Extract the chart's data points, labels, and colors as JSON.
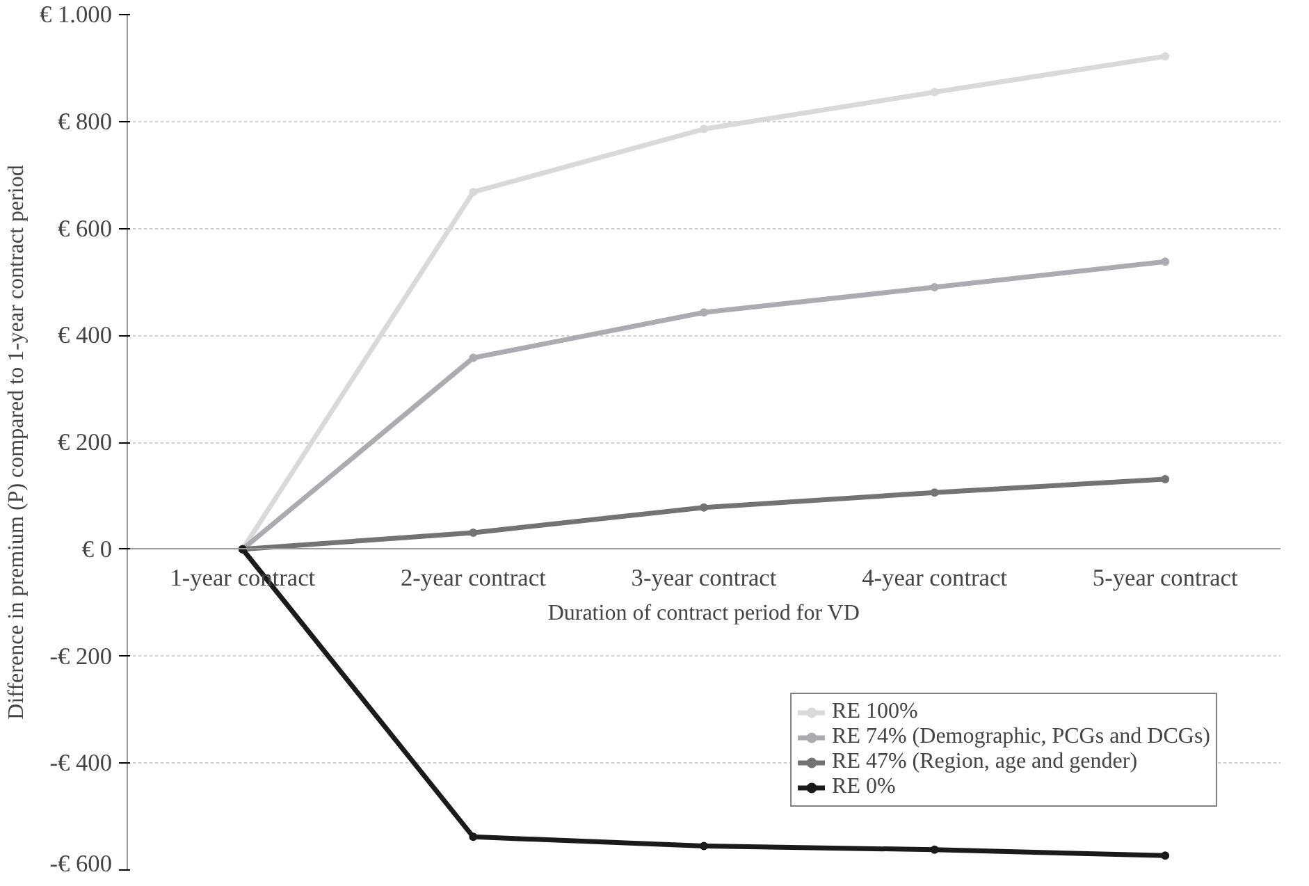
{
  "chart_data": {
    "type": "line",
    "xlabel": "Duration of contract period for VD",
    "ylabel": "Difference in premium (P) compared to 1-year contract period",
    "categories": [
      "1-year contract",
      "2-year contract",
      "3-year contract",
      "4-year contract",
      "5-year contract"
    ],
    "series": [
      {
        "name": "RE 100%",
        "color": "#d9d9d9",
        "values": [
          0,
          668,
          786,
          855,
          922
        ]
      },
      {
        "name": "RE 74% (Demographic, PCGs and DCGs)",
        "color": "#ababb0",
        "values": [
          0,
          358,
          443,
          490,
          538
        ]
      },
      {
        "name": "RE 47% (Region, age and gender)",
        "color": "#737373",
        "values": [
          0,
          31,
          78,
          106,
          131
        ]
      },
      {
        "name": "RE 0%",
        "color": "#1a1a1a",
        "values": [
          0,
          -538,
          -555,
          -562,
          -573
        ]
      }
    ],
    "ylim": [
      -600,
      1000
    ],
    "yticks": [
      {
        "value": -600,
        "label": "-€ 600"
      },
      {
        "value": -400,
        "label": "-€ 400"
      },
      {
        "value": -200,
        "label": "-€ 200"
      },
      {
        "value": 0,
        "label": "€ 0"
      },
      {
        "value": 200,
        "label": "€ 200"
      },
      {
        "value": 400,
        "label": "€ 400"
      },
      {
        "value": 600,
        "label": "€ 600"
      },
      {
        "value": 800,
        "label": "€ 800"
      },
      {
        "value": 1000,
        "label": "€ 1.000"
      }
    ],
    "grid": "y",
    "legend": "bottom right",
    "marker": "circle",
    "line_style": "solid"
  }
}
